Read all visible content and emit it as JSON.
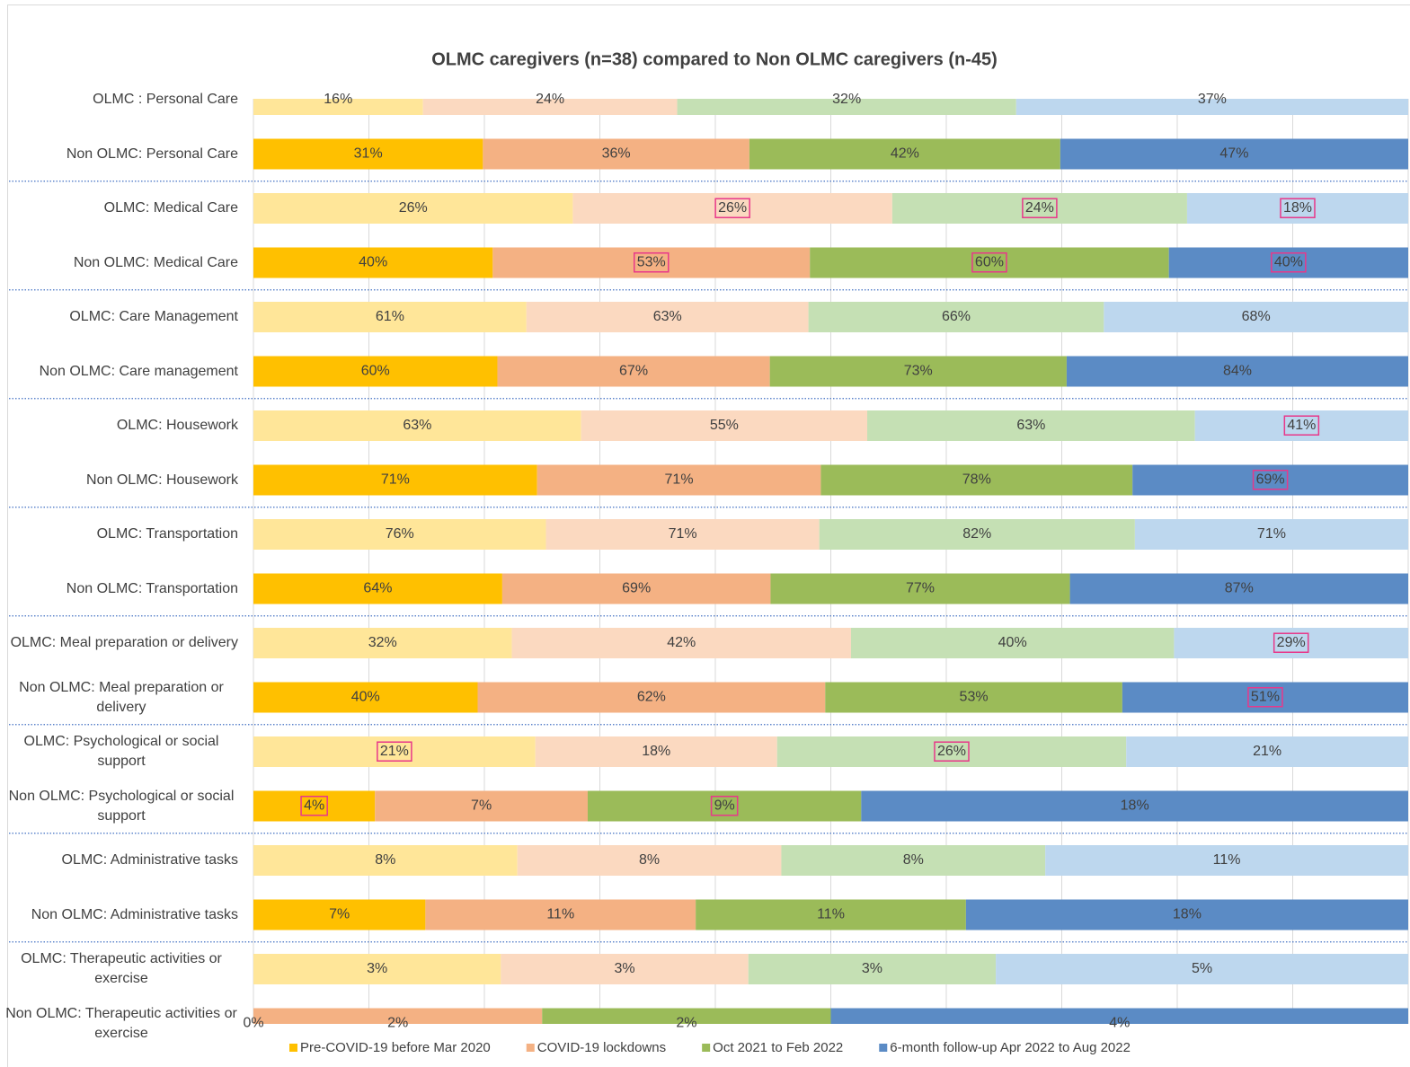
{
  "chart_data": {
    "type": "stacked_bar_100_horizontal",
    "title": "OLMC caregivers (n=38) compared to Non OLMC caregivers (n-45)",
    "categories": [
      "OLMC : Personal Care",
      "Non OLMC: Personal Care",
      "OLMC: Medical Care",
      "Non OLMC: Medical Care",
      "OLMC: Care Management",
      "Non OLMC: Care management",
      "OLMC: Housework",
      "Non OLMC: Housework",
      "OLMC: Transportation",
      "Non OLMC: Transportation",
      "OLMC: Meal preparation or delivery",
      "Non OLMC: Meal preparation or delivery",
      "OLMC: Psychological or social support",
      "Non OLMC: Psychological or social support",
      "OLMC: Administrative tasks",
      "Non OLMC: Administrative tasks",
      "OLMC: Therapeutic activities or exercise",
      "Non OLMC: Therapeutic activities or exercise"
    ],
    "series": [
      {
        "name": "Pre-COVID-19 before Mar 2020",
        "colors": [
          "#ffe699",
          "#ffc000"
        ],
        "values": [
          16,
          31,
          26,
          40,
          61,
          60,
          63,
          71,
          76,
          64,
          32,
          40,
          21,
          4,
          8,
          7,
          3,
          0
        ],
        "value_labels": [
          "16%",
          "31%",
          "26%",
          "40%",
          "61%",
          "60%",
          "63%",
          "71%",
          "76%",
          "64%",
          "32%",
          "40%",
          "21%",
          "4%",
          "8%",
          "7%",
          "3%",
          "0%"
        ],
        "highlighted": [
          false,
          false,
          false,
          false,
          false,
          false,
          false,
          false,
          false,
          false,
          false,
          false,
          true,
          true,
          false,
          false,
          false,
          false
        ]
      },
      {
        "name": "COVID-19 lockdowns",
        "colors": [
          "#fbd9c0",
          "#f4b183"
        ],
        "values": [
          24,
          36,
          26,
          53,
          63,
          67,
          55,
          71,
          71,
          69,
          42,
          62,
          18,
          7,
          8,
          11,
          3,
          2
        ],
        "value_labels": [
          "24%",
          "36%",
          "26%",
          "53%",
          "63%",
          "67%",
          "55%",
          "71%",
          "71%",
          "69%",
          "42%",
          "62%",
          "18%",
          "7%",
          "8%",
          "11%",
          "3%",
          "2%"
        ],
        "highlighted": [
          false,
          false,
          true,
          true,
          false,
          false,
          false,
          false,
          false,
          false,
          false,
          false,
          false,
          false,
          false,
          false,
          false,
          false
        ]
      },
      {
        "name": "Oct 2021 to Feb 2022",
        "colors": [
          "#c5e0b4",
          "#9bbb59"
        ],
        "values": [
          32,
          42,
          24,
          60,
          66,
          73,
          63,
          78,
          82,
          77,
          40,
          53,
          26,
          9,
          8,
          11,
          3,
          2
        ],
        "value_labels": [
          "32%",
          "42%",
          "24%",
          "60%",
          "66%",
          "73%",
          "63%",
          "78%",
          "82%",
          "77%",
          "40%",
          "53%",
          "26%",
          "9%",
          "8%",
          "11%",
          "3%",
          "2%"
        ],
        "highlighted": [
          false,
          false,
          true,
          true,
          false,
          false,
          false,
          false,
          false,
          false,
          false,
          false,
          true,
          true,
          false,
          false,
          false,
          false
        ]
      },
      {
        "name": "6-month follow-up Apr 2022 to Aug 2022",
        "colors": [
          "#bdd7ee",
          "#5b8bc5"
        ],
        "values": [
          37,
          47,
          18,
          40,
          68,
          84,
          41,
          69,
          71,
          87,
          29,
          51,
          21,
          18,
          11,
          18,
          5,
          4
        ],
        "value_labels": [
          "37%",
          "47%",
          "18%",
          "40%",
          "68%",
          "84%",
          "41%",
          "69%",
          "71%",
          "87%",
          "29%",
          "51%",
          "21%",
          "18%",
          "11%",
          "18%",
          "5%",
          "4%"
        ],
        "highlighted": [
          false,
          false,
          true,
          true,
          false,
          false,
          true,
          true,
          false,
          false,
          true,
          true,
          false,
          false,
          false,
          false,
          false,
          false
        ]
      }
    ],
    "xlim": [
      0,
      100
    ],
    "xticks": [
      0,
      10,
      20,
      30,
      40,
      50,
      60,
      70,
      80,
      90,
      100
    ],
    "grid": true,
    "legend": "bottom"
  }
}
